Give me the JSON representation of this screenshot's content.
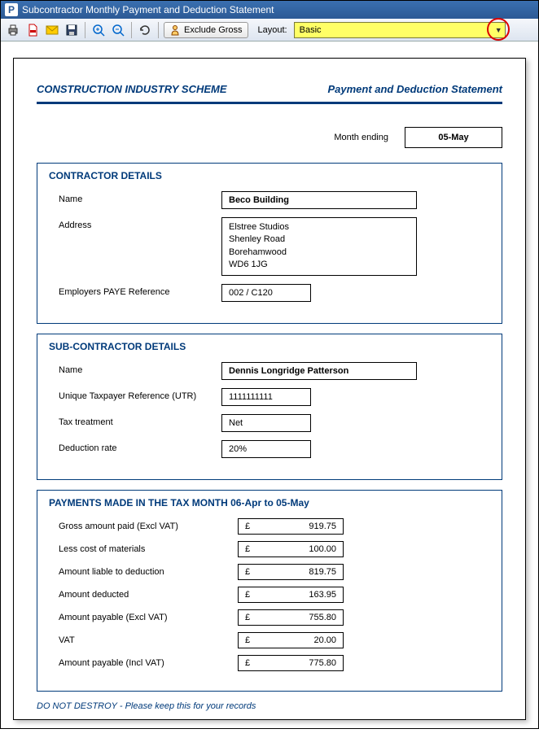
{
  "window": {
    "title": "Subcontractor Monthly Payment and Deduction Statement"
  },
  "toolbar": {
    "exclude_label": "Exclude Gross",
    "layout_label": "Layout:",
    "layout_value": "Basic"
  },
  "document": {
    "header_left": "CONSTRUCTION INDUSTRY SCHEME",
    "header_right": "Payment and Deduction Statement",
    "month_label": "Month ending",
    "month_value": "05-May",
    "footer": "DO NOT DESTROY - Please keep this for your records"
  },
  "contractor": {
    "title": "CONTRACTOR DETAILS",
    "name_label": "Name",
    "name": "Beco Building",
    "address_label": "Address",
    "address_line1": "Elstree Studios",
    "address_line2": "Shenley Road",
    "address_line3": "Borehamwood",
    "address_line4": "WD6 1JG",
    "paye_label": "Employers PAYE Reference",
    "paye": "002 / C120"
  },
  "subcontractor": {
    "title": "SUB-CONTRACTOR DETAILS",
    "name_label": "Name",
    "name": "Dennis Longridge Patterson",
    "utr_label": "Unique Taxpayer Reference (UTR)",
    "utr": "1111111111",
    "tax_label": "Tax treatment",
    "tax_treatment": "Net",
    "rate_label": "Deduction rate",
    "rate": "20%"
  },
  "payments": {
    "title": "PAYMENTS MADE IN THE TAX MONTH  06-Apr to  05-May",
    "currency": "£",
    "rows": [
      {
        "label": "Gross amount paid (Excl VAT)",
        "value": "919.75"
      },
      {
        "label": "Less cost of materials",
        "value": "100.00"
      },
      {
        "label": "Amount liable to deduction",
        "value": "819.75"
      },
      {
        "label": "Amount deducted",
        "value": "163.95"
      },
      {
        "label": "Amount payable (Excl VAT)",
        "value": "755.80"
      },
      {
        "label": "VAT",
        "value": "20.00"
      },
      {
        "label": "Amount payable (Incl VAT)",
        "value": "775.80"
      }
    ]
  }
}
